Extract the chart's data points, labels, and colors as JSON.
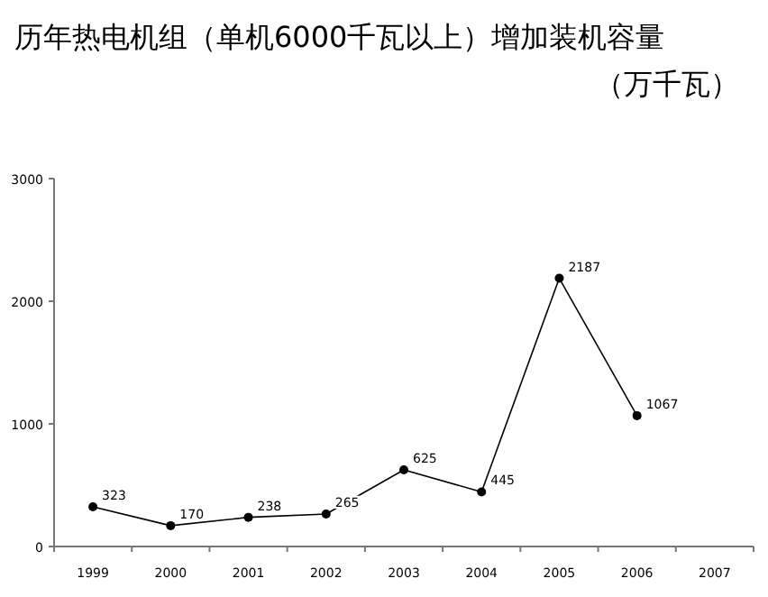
{
  "chart_data": {
    "type": "line",
    "title": "历年热电机组（单机6000千瓦以上）增加装机容量",
    "subtitle": "（万千瓦）",
    "categories": [
      "1999",
      "2000",
      "2001",
      "2002",
      "2003",
      "2004",
      "2005",
      "2006",
      "2007"
    ],
    "values": [
      323,
      170,
      238,
      265,
      625,
      445,
      2187,
      1067,
      null
    ],
    "color": "#000000",
    "marker": "circle",
    "data_labels": true,
    "ylim": [
      0,
      3000
    ],
    "yticks": [
      0,
      1000,
      2000,
      3000
    ],
    "grid": false
  }
}
